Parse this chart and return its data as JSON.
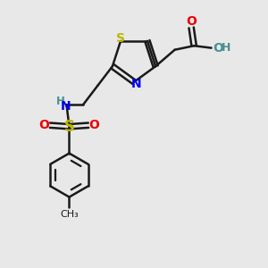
{
  "bg_color": "#e8e8e8",
  "bond_color": "#1a1a1a",
  "S_color": "#b8b800",
  "N_color": "#0000ee",
  "O_color": "#ee0000",
  "OH_color": "#4a9090",
  "figsize": [
    3.0,
    3.0
  ],
  "dpi": 100,
  "xlim": [
    0,
    10
  ],
  "ylim": [
    0,
    10
  ]
}
